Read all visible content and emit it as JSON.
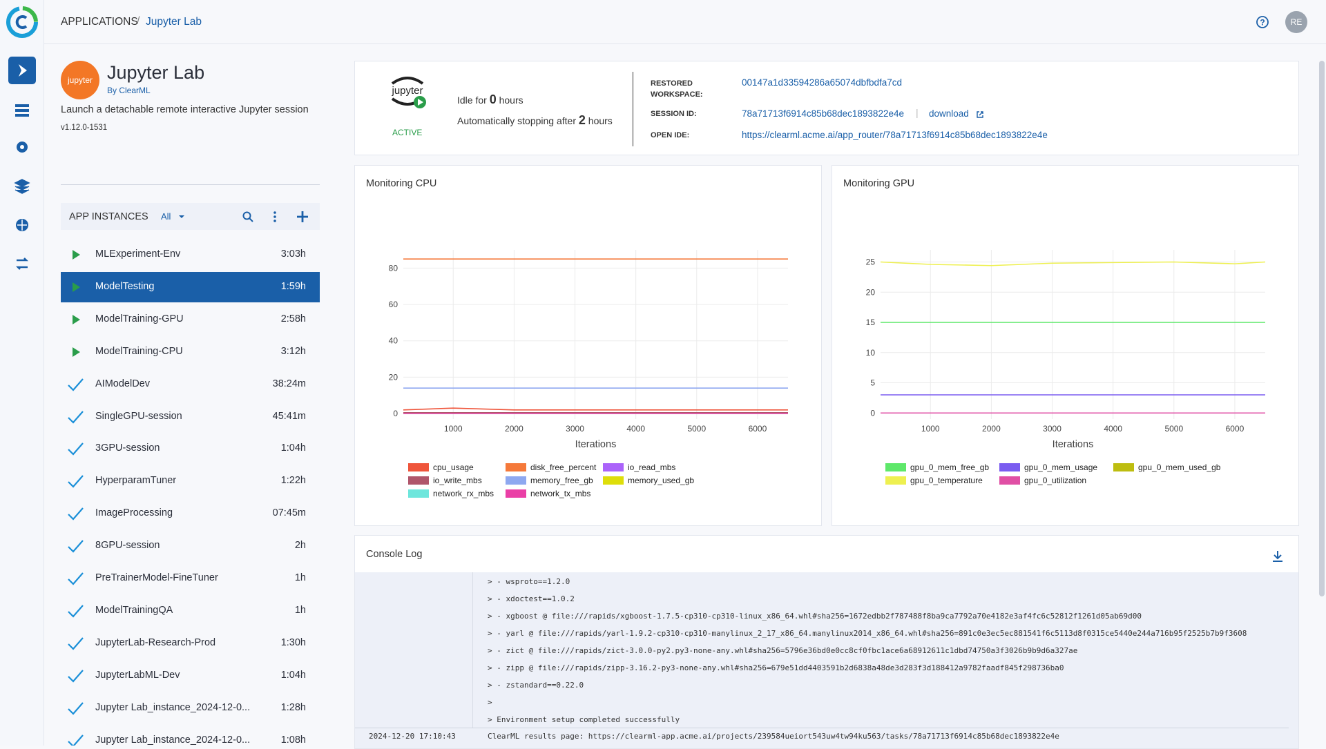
{
  "header": {
    "breadcrumb": [
      "APPLICATIONS",
      "Jupyter Lab"
    ],
    "avatar": "RE"
  },
  "app": {
    "logo": "jupyter",
    "name": "Jupyter Lab",
    "by": "By ClearML",
    "description": "Launch a detachable remote interactive Jupyter session",
    "version": "v1.12.0-1531"
  },
  "instances": {
    "title": "APP INSTANCES",
    "filter": "All",
    "items": [
      {
        "name": "MLExperiment-Env",
        "time": "3:03h",
        "icon": "play"
      },
      {
        "name": "ModelTesting",
        "time": "1:59h",
        "icon": "play",
        "selected": true
      },
      {
        "name": "ModelTraining-GPU",
        "time": "2:58h",
        "icon": "play"
      },
      {
        "name": "ModelTraining-CPU",
        "time": "3:12h",
        "icon": "play"
      },
      {
        "name": "AIModelDev",
        "time": "38:24m",
        "icon": "check"
      },
      {
        "name": "SingleGPU-session",
        "time": "45:41m",
        "icon": "check"
      },
      {
        "name": "3GPU-session",
        "time": "1:04h",
        "icon": "check"
      },
      {
        "name": "HyperparamTuner",
        "time": "1:22h",
        "icon": "check"
      },
      {
        "name": "ImageProcessing",
        "time": "07:45m",
        "icon": "check"
      },
      {
        "name": "8GPU-session",
        "time": "2h",
        "icon": "check"
      },
      {
        "name": "PreTrainerModel-FineTuner",
        "time": "1h",
        "icon": "check"
      },
      {
        "name": "ModelTrainingQA",
        "time": "1h",
        "icon": "check"
      },
      {
        "name": "JupyterLab-Research-Prod",
        "time": "1:30h",
        "icon": "check"
      },
      {
        "name": "JupyterLabML-Dev",
        "time": "1:04h",
        "icon": "check"
      },
      {
        "name": "Jupyter Lab_instance_2024-12-0...",
        "time": "1:28h",
        "icon": "check"
      },
      {
        "name": "Jupyter Lab_instance_2024-12-0...",
        "time": "1:08h",
        "icon": "check"
      }
    ]
  },
  "session": {
    "logo": "jupyter",
    "status": "ACTIVE",
    "idle_prefix": "Idle for",
    "idle_value": 0,
    "idle_unit": "hours",
    "stop_prefix": "Automatically stopping after",
    "stop_value": 2,
    "stop_unit": "hours",
    "fields": [
      {
        "label": "RESTORED WORKSPACE:",
        "value": "00147a1d33594286a65074dbfbdfa7cd"
      },
      {
        "label": "SESSION ID:",
        "value": "78a71713f6914c85b68dec1893822e4e",
        "link": "download"
      },
      {
        "label": "OPEN IDE:",
        "value": "https://clearml.acme.ai/app_router/78a71713f6914c85b68dec1893822e4e"
      }
    ]
  },
  "chart_data": [
    {
      "type": "line",
      "title": "Monitoring CPU",
      "x_label": "Iterations",
      "x": [
        180,
        1000,
        2000,
        3000,
        4000,
        5000,
        6000,
        6500
      ],
      "xlim": [
        180,
        6500
      ],
      "xticks": [
        1000,
        2000,
        3000,
        4000,
        5000,
        6000
      ],
      "ylim": [
        -3,
        90
      ],
      "yticks": [
        0,
        20,
        40,
        60,
        80
      ],
      "grid": true,
      "series": [
        {
          "name": "cpu_usage",
          "color": "#ef553b",
          "values": [
            2,
            3,
            2,
            2,
            2,
            2,
            2,
            2
          ]
        },
        {
          "name": "disk_free_percent",
          "color": "#f5793a",
          "values": [
            85,
            85,
            85,
            85,
            85,
            85,
            85,
            85
          ]
        },
        {
          "name": "io_read_mbs",
          "color": "#ab63fa",
          "values": [
            0,
            0,
            0,
            0,
            0,
            0,
            0,
            0
          ]
        },
        {
          "name": "io_write_mbs",
          "color": "#b0566b",
          "values": [
            0.5,
            0.5,
            0.5,
            0.5,
            0.5,
            0.5,
            0.5,
            0.5
          ]
        },
        {
          "name": "memory_free_gb",
          "color": "#8ea8f0",
          "values": [
            14,
            14,
            14,
            14,
            14,
            14,
            14,
            14
          ]
        },
        {
          "name": "memory_used_gb",
          "color": "#dede0a",
          "values": [
            0,
            0,
            0,
            0,
            0,
            0,
            0,
            0
          ]
        },
        {
          "name": "network_rx_mbs",
          "color": "#6ee6dc",
          "values": [
            0,
            0,
            0,
            0,
            0,
            0,
            0,
            0
          ]
        },
        {
          "name": "network_tx_mbs",
          "color": "#ea3fa6",
          "values": [
            0,
            0,
            0,
            0,
            0,
            0,
            0,
            0
          ]
        }
      ]
    },
    {
      "type": "line",
      "title": "Monitoring GPU",
      "x_label": "Iterations",
      "x": [
        180,
        1000,
        2000,
        3000,
        4000,
        5000,
        6000,
        6500
      ],
      "xlim": [
        180,
        6500
      ],
      "xticks": [
        1000,
        2000,
        3000,
        4000,
        5000,
        6000
      ],
      "ylim": [
        -1,
        27
      ],
      "yticks": [
        0,
        5,
        10,
        15,
        20,
        25
      ],
      "grid": true,
      "series": [
        {
          "name": "gpu_0_mem_free_gb",
          "color": "#5ee86a",
          "values": [
            15,
            15,
            15,
            15,
            15,
            15,
            15,
            15
          ]
        },
        {
          "name": "gpu_0_mem_usage",
          "color": "#7a5cf0",
          "values": [
            3,
            3,
            3,
            3,
            3,
            3,
            3,
            3
          ]
        },
        {
          "name": "gpu_0_mem_used_gb",
          "color": "#bdbd10",
          "values": [
            0,
            0,
            0,
            0,
            0,
            0,
            0,
            0
          ]
        },
        {
          "name": "gpu_0_temperature",
          "color": "#eef050",
          "values": [
            25,
            24.6,
            24.4,
            24.8,
            24.9,
            25,
            24.7,
            25
          ]
        },
        {
          "name": "gpu_0_utilization",
          "color": "#e04fa5",
          "values": [
            0,
            0,
            0,
            0,
            0,
            0,
            0,
            0
          ]
        }
      ]
    }
  ],
  "console": {
    "title": "Console Log",
    "lines": [
      "> - wsproto==1.2.0",
      "> - xdoctest==1.0.2",
      "> - xgboost @ file:///rapids/xgboost-1.7.5-cp310-cp310-linux_x86_64.whl#sha256=1672edbb2f787488f8ba9ca7792a70e4182e3af4fc6c52812f1261d05ab69d00",
      "> - yarl @ file:///rapids/yarl-1.9.2-cp310-cp310-manylinux_2_17_x86_64.manylinux2014_x86_64.whl#sha256=891c0e3ec5ec881541f6c5113d8f0315ce5440e244a716b95f2525b7b9f3608",
      "> - zict @ file:///rapids/zict-3.0.0-py2.py3-none-any.whl#sha256=5796e36bd0e0cc8cf0fbc1ace6a68912611c1dbd74750a3f3026b9b9d6a327ae",
      "> - zipp @ file:///rapids/zipp-3.16.2-py3-none-any.whl#sha256=679e51dd4403591b2d6838a48de3d283f3d188412a9782faadf845f298736ba0",
      "> - zstandard==0.22.0",
      ">",
      "> Environment setup completed successfully"
    ],
    "timestamp": "2024-12-20 17:10:43",
    "result": "ClearML results page: https://clearml-app.acme.ai/projects/239584ueiort543uw4tw94ku563/tasks/78a71713f6914c85b68dec1893822e4e"
  }
}
